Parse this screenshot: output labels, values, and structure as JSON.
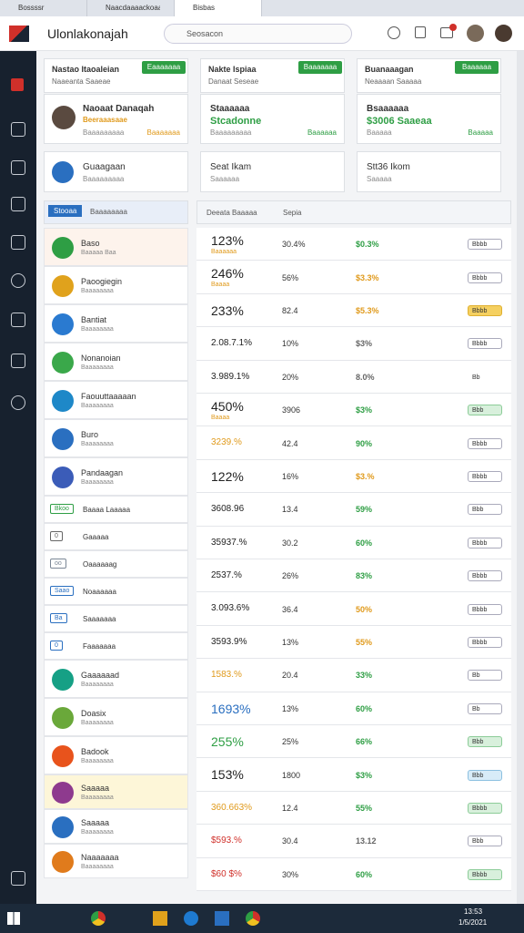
{
  "tabs": [
    "Bossssr",
    "Naacdaaaackoaascon",
    "Bisbas"
  ],
  "header": {
    "title": "Ulonlakonajah",
    "search": "Seosacon"
  },
  "cards": [
    {
      "title": "Nastao Itaoaleian",
      "subtitle": "Naaeanta Saaeae",
      "button": "Eaaaaaaa",
      "name": "Naoaat Danaqah",
      "line1": "Beeraaasaae",
      "line2": "Baaaaaaaaa",
      "meta": "Baaaaaaa"
    },
    {
      "title": "Nakte Ispiaa",
      "subtitle": "Danaat Seseae",
      "button": "Baaaaaaa",
      "name": "Staaaaaa",
      "line1": "Stcadonne",
      "line2": "Baaaaaaaaa",
      "meta": "Baaaaaa"
    },
    {
      "title": "Buanaaagan",
      "subtitle": "Neaaaan Saaaaa",
      "button": "Baaaaaa",
      "name": "Bsaaaaaa",
      "line1": "$3006 Saaeaa",
      "line2": "Baaaaa",
      "meta": "Baaaaa"
    }
  ],
  "small_cards": [
    {
      "name": "Guaagaan",
      "sub": "Baaaaaaaaa"
    },
    {
      "name": "Seat Ikam",
      "sub": "Saaaaaa"
    },
    {
      "name": "Stt36 Ikom",
      "sub": "Saaaaa"
    }
  ],
  "table": {
    "left_tab": "Stooaa",
    "left_head": "Baaaaaaaa",
    "head1": "Deeata Baaaaa",
    "head2": "Sepia"
  },
  "list": [
    {
      "name": "Baso",
      "sub": "Baaaaa Baa",
      "color": "#2e9e44"
    },
    {
      "name": "Paoogiegin",
      "sub": "Baaaaaaaa",
      "color": "#e0a21c"
    },
    {
      "name": "Bantiat",
      "sub": "Baaaaaaaa",
      "color": "#2a7ad0"
    },
    {
      "name": "Nonanoian",
      "sub": "Baaaaaaaa",
      "color": "#3aa84a"
    },
    {
      "name": "Faouuttaaaaan",
      "sub": "Baaaaaaaa",
      "color": "#1e88c8"
    },
    {
      "name": "Buro",
      "sub": "Baaaaaaaa",
      "color": "#2a6fc0"
    },
    {
      "name": "Pandaagan",
      "sub": "Baaaaaaaa",
      "color": "#3b5cb8"
    },
    {
      "name": "Baaaa Laaaaa",
      "tag": "Bkoo",
      "color": "#2e9e44"
    },
    {
      "name": "Gaaaaa",
      "tag": "0",
      "color": "#666666"
    },
    {
      "name": "Oaaaaaag",
      "tag": "oo",
      "color": "#7b8796"
    },
    {
      "name": "Noaaaaaa",
      "tag": "Saao",
      "color": "#2a6fc0"
    },
    {
      "name": "Saaaaaaa",
      "tag": "Ba",
      "color": "#2a6fc0"
    },
    {
      "name": "Faaaaaaa",
      "tag": "0",
      "color": "#2a6fc0"
    },
    {
      "name": "Gaaaaaad",
      "sub": "Baaaaaaaa",
      "color": "#16a085"
    },
    {
      "name": "Doasix",
      "sub": "Baaaaaaaa",
      "color": "#6aa83a"
    },
    {
      "name": "Badook",
      "sub": "Baaaaaaaa",
      "color": "#e8531c"
    },
    {
      "name": "Saaaaa",
      "sub": "Baaaaaaaa",
      "color": "#8e3a8e"
    },
    {
      "name": "Saaaaa",
      "sub": "Baaaaaaaa",
      "color": "#2a6fc0"
    },
    {
      "name": "Naaaaaaa",
      "sub": "Baaaaaaaa",
      "color": "#e07b1c"
    }
  ],
  "rows": [
    {
      "value": "123%",
      "note": "Baaaaaa",
      "c2": "30.4%",
      "c3": "$0.3%",
      "c3_color": "#2e9e44",
      "badge": "Bbbb",
      "badge_style": "gray"
    },
    {
      "value": "246%",
      "note": "Baaaa",
      "c2": "56%",
      "c3": "$3.3%",
      "c3_color": "#e09a1c",
      "badge": "Bbbb",
      "badge_style": "gray"
    },
    {
      "value": "233%",
      "c2": "82.4",
      "c3": "$5.3%",
      "c3_color": "#e09a1c",
      "badge": "Bbbb",
      "badge_style": "yellow"
    },
    {
      "value": "2.08.7.1%",
      "c2": "10%",
      "c3": "$3%",
      "c3_color": "#666666",
      "badge": "Bbbb",
      "badge_style": "gray"
    },
    {
      "value": "3.989.1%",
      "c2": "20%",
      "c3": "8.0%",
      "c3_color": "#666666",
      "badge": "Bb",
      "badge_style": "plain"
    },
    {
      "value": "450%",
      "note": "Baaaa",
      "c2": "3906",
      "c3": "$3%",
      "c3_color": "#2e9e44",
      "badge": "Bbb",
      "badge_style": "green"
    },
    {
      "value": "3239.%",
      "value_color": "#e09a1c",
      "c2": "42.4",
      "c3": "90%",
      "c3_color": "#2e9e44",
      "badge": "Bbbb",
      "badge_style": "gray"
    },
    {
      "value": "122%",
      "c2": "16%",
      "c3": "$3.%",
      "c3_color": "#e09a1c",
      "badge": "Bbbb",
      "badge_style": "gray"
    },
    {
      "value": "3608.96",
      "c2": "13.4",
      "c3": "59%",
      "c3_color": "#2e9e44",
      "badge": "Bbb",
      "badge_style": "gray"
    },
    {
      "value": "35937.%",
      "c2": "30.2",
      "c3": "60%",
      "c3_color": "#2e9e44",
      "badge": "Bbbb",
      "badge_style": "gray"
    },
    {
      "value": "2537.%",
      "c2": "26%",
      "c3": "83%",
      "c3_color": "#2e9e44",
      "badge": "Bbbb",
      "badge_style": "gray"
    },
    {
      "value": "3.093.6%",
      "c2": "36.4",
      "c3": "50%",
      "c3_color": "#e09a1c",
      "badge": "Bbbb",
      "badge_style": "gray"
    },
    {
      "value": "3593.9%",
      "c2": "13%",
      "c3": "55%",
      "c3_color": "#e09a1c",
      "badge": "Bbbb",
      "badge_style": "gray"
    },
    {
      "value": "1583.%",
      "value_color": "#e09a1c",
      "c2": "20.4",
      "c3": "33%",
      "c3_color": "#2e9e44",
      "badge": "Bb",
      "badge_style": "gray"
    },
    {
      "value": "1693%",
      "value_color": "#2a6fc0",
      "c2": "13%",
      "c3": "60%",
      "c3_color": "#2e9e44",
      "badge": "Bb",
      "badge_style": "gray"
    },
    {
      "value": "255%",
      "value_color": "#2e9e44",
      "c2": "25%",
      "c3": "66%",
      "c3_color": "#2e9e44",
      "badge": "Bbb",
      "badge_style": "green"
    },
    {
      "value": "153%",
      "c2": "1800",
      "c3": "$3%",
      "c3_color": "#2e9e44",
      "badge": "Bbb",
      "badge_style": "blue"
    },
    {
      "value": "360.663%",
      "value_color": "#e09a1c",
      "c2": "12.4",
      "c3": "55%",
      "c3_color": "#2e9e44",
      "badge": "Bbbb",
      "badge_style": "green"
    },
    {
      "value": "$593.%",
      "value_color": "#d0302a",
      "c2": "30.4",
      "c3": "13.12",
      "c3_color": "#666666",
      "badge": "Bbb",
      "badge_style": "gray"
    },
    {
      "value": "$60 $%",
      "value_color": "#d0302a",
      "c2": "30%",
      "c3": "60%",
      "c3_color": "#2e9e44",
      "badge": "Bbbb",
      "badge_style": "green"
    }
  ],
  "taskbar": {
    "time": "13:53",
    "date": "1/5/2021"
  }
}
